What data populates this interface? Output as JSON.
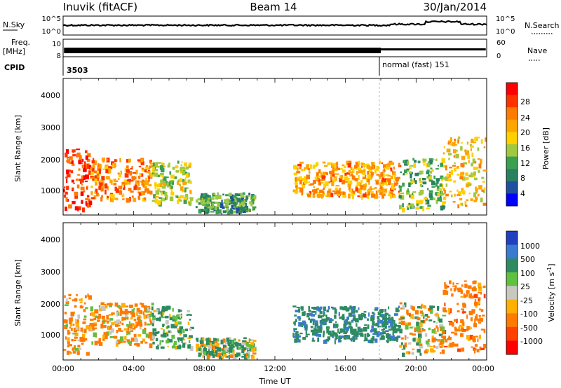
{
  "header": {
    "station": "Inuvik (fitACF)",
    "beam": "Beam 14",
    "date": "30/Jan/2014"
  },
  "nsky": {
    "label": "N.Sky",
    "right_label": "N.Search",
    "ticks": [
      "10^5",
      "10^0"
    ],
    "right_ticks": [
      "10^5",
      "10^0"
    ]
  },
  "freq": {
    "label_line1": "Freq.",
    "label_line2": "[MHz]",
    "ticks": [
      "10",
      "8"
    ],
    "right_label": "Nave",
    "right_ticks": [
      "60",
      "0"
    ]
  },
  "cpid": {
    "label": "CPID",
    "entries": [
      {
        "text": "3503",
        "start_hour": 0
      },
      {
        "text": "normal (fast) 151",
        "start_hour": 18.0
      }
    ]
  },
  "panels": [
    {
      "ylabel": "Slant Range [km]",
      "yticks": [
        "4000",
        "3000",
        "2000",
        "1000"
      ]
    },
    {
      "ylabel": "Slant Range [km]",
      "yticks": [
        "4000",
        "3000",
        "2000",
        "1000"
      ]
    }
  ],
  "x_axis": {
    "label": "Time UT",
    "ticks": [
      "00:00",
      "04:00",
      "08:00",
      "12:00",
      "16:00",
      "20:00",
      "00:00"
    ]
  },
  "colorbars": {
    "power": {
      "title": "Power [dB]",
      "labels": [
        "28",
        "24",
        "20",
        "16",
        "12",
        "8",
        "4"
      ],
      "colors": [
        "#ff0000",
        "#ff3300",
        "#ff7a00",
        "#ffa500",
        "#ffd000",
        "#a0c840",
        "#3aa050",
        "#2a8060",
        "#1f4fa0",
        "#0000ff"
      ]
    },
    "velocity": {
      "title": "Velocity [m s",
      "title_sup": "-1",
      "title_end": "]",
      "labels": [
        "1000",
        "500",
        "100",
        "25",
        "-25",
        "-100",
        "-500",
        "-1000"
      ],
      "colors": [
        "#2040c0",
        "#3a7ad0",
        "#2e8a60",
        "#60c040",
        "#c8c8c0",
        "#ffb000",
        "#ff7a00",
        "#ff4000",
        "#ff0000"
      ]
    }
  },
  "chart_data": {
    "type": "heatmap",
    "title": "Inuvik (fitACF)  Beam 14  30/Jan/2014",
    "xlabel": "Time UT",
    "ylabel": "Slant Range [km]",
    "x_range_hours": [
      0,
      24
    ],
    "y_range_km": [
      180,
      4500
    ],
    "power_range_db": [
      0,
      30
    ],
    "velocity_range_ms": [
      -1000,
      1000
    ],
    "scatter_regions": [
      {
        "t_start": 0.0,
        "t_end": 1.5,
        "r_lo": 400,
        "r_hi": 2300,
        "power_db": 26,
        "velocity_ms": -200
      },
      {
        "t_start": 1.5,
        "t_end": 5.0,
        "r_lo": 700,
        "r_hi": 2000,
        "power_db": 22,
        "velocity_ms": -150
      },
      {
        "t_start": 5.0,
        "t_end": 7.2,
        "r_lo": 600,
        "r_hi": 1900,
        "power_db": 14,
        "velocity_ms": 150
      },
      {
        "t_start": 7.5,
        "t_end": 10.8,
        "r_lo": 300,
        "r_hi": 900,
        "power_db": 10,
        "velocity_ms": 90
      },
      {
        "t_start": 13.0,
        "t_end": 19.0,
        "r_lo": 800,
        "r_hi": 1900,
        "power_db": 20,
        "velocity_ms": 400
      },
      {
        "t_start": 19.0,
        "t_end": 21.5,
        "r_lo": 400,
        "r_hi": 2000,
        "power_db": 12,
        "velocity_ms": -20
      },
      {
        "t_start": 21.5,
        "t_end": 24.0,
        "r_lo": 500,
        "r_hi": 2700,
        "power_db": 18,
        "velocity_ms": -300
      }
    ]
  }
}
